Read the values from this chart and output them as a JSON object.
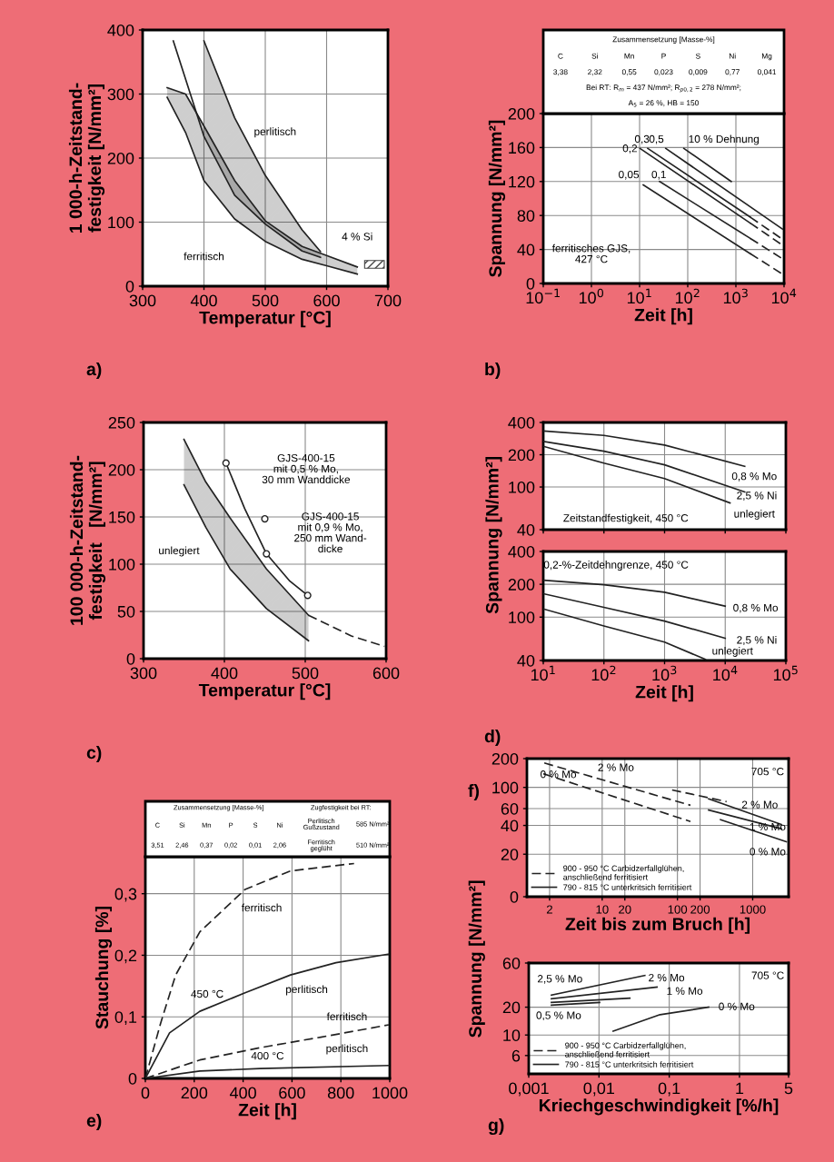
{
  "chart_data": [
    {
      "type": "line",
      "title": "a)",
      "xlabel": "Temperatur [°C]",
      "ylabel": "1 000-h-Zeitstand-\nfestigkeit [N/mm²]",
      "xlim": [
        300,
        700
      ],
      "ylim": [
        0,
        400
      ],
      "xticks": [
        300,
        400,
        500,
        600,
        700
      ],
      "yticks": [
        0,
        100,
        200,
        300,
        400
      ],
      "grid": true,
      "series": [
        {
          "color": "#222222",
          "x": [
            340,
            370,
            400,
            450,
            500,
            560,
            600,
            650
          ],
          "values": [
            310,
            300,
            250,
            165,
            102,
            62,
            48,
            30
          ],
          "lower": [
            295,
            240,
            165,
            105,
            70,
            42,
            32,
            19
          ],
          "upper": [
            310,
            300,
            250,
            165,
            102,
            62,
            48,
            30
          ]
        },
        {
          "color": "#222222",
          "x": [
            340,
            370,
            400,
            450,
            500,
            560,
            600,
            650
          ],
          "values": [
            295,
            240,
            165,
            105,
            70,
            42,
            32,
            19
          ]
        },
        {
          "color": "#222222",
          "x": [
            400,
            450,
            500,
            560,
            590
          ],
          "values": [
            383,
            263,
            173,
            88,
            54
          ],
          "lower": [
            234,
            142,
            97,
            55,
            45
          ],
          "upper": [
            383,
            263,
            173,
            88,
            54
          ]
        },
        {
          "color": "#222222",
          "x": [
            350,
            400,
            450,
            500,
            560,
            590
          ],
          "values": [
            383,
            234,
            142,
            97,
            55,
            45
          ]
        }
      ],
      "annotations": [
        "perlitisch",
        "ferritisch",
        "4 % Si"
      ]
    },
    {
      "type": "line",
      "title": "b)",
      "xlabel": "Zeit [h]",
      "ylabel": "Spannung [N/mm²]",
      "log": "x",
      "xlim": [
        0.1,
        10000
      ],
      "ylim": [
        0,
        200
      ],
      "xticks": [
        {
          "value": 0.1,
          "label": "10$^{−1}$"
        },
        {
          "value": 1,
          "label": "10$^{0}$"
        },
        {
          "value": 10,
          "label": "10$^{1}$"
        },
        {
          "value": 100,
          "label": "10$^{2}$"
        },
        {
          "value": 1000,
          "label": "10$^{3}$"
        },
        {
          "value": 10000,
          "label": "10$^{4}$"
        }
      ],
      "yticks": [
        0,
        40,
        80,
        120,
        160,
        200
      ],
      "grid": true,
      "series": [
        {
          "color": "#222222",
          "x": [
            11.9,
            2000
          ],
          "values": [
            116,
            35
          ]
        },
        {
          "color": "#222222",
          "x": [
            2000,
            9300
          ],
          "values": [
            35,
            11
          ],
          "line_style": "dashed"
        },
        {
          "color": "#222222",
          "x": [
            26,
            2000
          ],
          "values": [
            120,
            53
          ]
        },
        {
          "color": "#222222",
          "x": [
            2000,
            9300
          ],
          "values": [
            53,
            29
          ],
          "line_style": "dashed"
        },
        {
          "color": "#222222",
          "x": [
            10.2,
            2000
          ],
          "values": [
            159,
            71
          ]
        },
        {
          "color": "#222222",
          "x": [
            2000,
            9300
          ],
          "values": [
            71,
            45
          ],
          "line_style": "dashed"
        },
        {
          "color": "#222222",
          "x": [
            14.8,
            2000
          ],
          "values": [
            159,
            78
          ]
        },
        {
          "color": "#222222",
          "x": [
            2000,
            9300
          ],
          "values": [
            78,
            52
          ],
          "line_style": "dashed"
        },
        {
          "color": "#222222",
          "x": [
            35,
            9300
          ],
          "values": [
            159,
            64
          ]
        },
        {
          "color": "#222222",
          "x": [
            83,
            800
          ],
          "values": [
            159,
            120
          ]
        }
      ],
      "annotations": [
        "Zusammensetzung [Masse-%]",
        "C",
        "Si",
        "Mn",
        "P",
        "S",
        "Ni",
        "Mg",
        "3,38",
        "2,32",
        "0,55",
        "0,023",
        "0,009",
        "0,77",
        "0,041",
        "Bei RT: R$_{m}$ = 437 N/mm²; R$_{p0,2}$ = 278 N/mm²;",
        "A$_{5}$ = 26 %, HB = 150",
        "ferritisches GJS,\n427 °C",
        "0,2",
        "0,3",
        "0,5",
        "10 % Dehnung",
        "0,05",
        "0,1"
      ]
    },
    {
      "type": "line",
      "title": "c)",
      "xlabel": "Temperatur [°C]",
      "ylabel": "100 000-h-Zeitstand-\nfestigkeit   [N/mm²]",
      "xlim": [
        300,
        600
      ],
      "ylim": [
        0,
        250
      ],
      "xticks": [
        300,
        400,
        500,
        600
      ],
      "yticks": [
        0,
        50,
        100,
        150,
        200,
        250
      ],
      "grid": true,
      "series": [
        {
          "color": "#222222",
          "x": [
            350,
            377,
            407,
            452,
            504
          ],
          "values": [
            232,
            187,
            149,
            95,
            46
          ],
          "lower": [
            184,
            139,
            95,
            53,
            19
          ],
          "upper": [
            232,
            187,
            149,
            95,
            46
          ]
        },
        {
          "color": "#222222",
          "x": [
            350,
            377,
            407,
            452,
            504
          ],
          "values": [
            184,
            139,
            95,
            53,
            19
          ]
        },
        {
          "color": "#222222",
          "x": [
            504,
            557,
            598
          ],
          "values": [
            46,
            24,
            13
          ],
          "line_style": "dashed"
        },
        {
          "color": "#222222",
          "x": [
            402,
            425,
            452,
            481,
            503
          ],
          "values": [
            207,
            159,
            111,
            82,
            67
          ]
        },
        {
          "type": "scatter",
          "color": "#222222",
          "marker": "circle",
          "x": [
            402,
            452,
            503
          ],
          "values": [
            207,
            111,
            67
          ]
        },
        {
          "type": "scatter",
          "color": "#222222",
          "marker": "circle",
          "x": [
            450
          ],
          "values": [
            148
          ]
        }
      ],
      "annotations": [
        "GJS-400-15\nmit 0,5 % Mo,\n30 mm Wanddicke",
        "GJS-400-15\nmit 0,9 % Mo,\n250 mm Wand-\ndicke",
        "unlegiert"
      ]
    },
    {
      "type": "line",
      "ylabel": "Spannung [N/mm²]",
      "log": "xy",
      "tick_labels": "y",
      "xlim": [
        10,
        100000
      ],
      "ylim": [
        40,
        400
      ],
      "xticks": [
        {
          "value": 10,
          "label": null
        },
        {
          "value": 100,
          "label": null
        },
        {
          "value": 1000,
          "label": null
        },
        {
          "value": 10000,
          "label": null
        },
        {
          "value": 100000,
          "label": null
        }
      ],
      "yticks": [
        40,
        100,
        200,
        400
      ],
      "grid": true,
      "series": [
        {
          "color": "#222222",
          "x": [
            10,
            100,
            1000,
            21000
          ],
          "values": [
            333,
            303,
            246,
            156
          ]
        },
        {
          "color": "#222222",
          "x": [
            10,
            100,
            1000,
            21000
          ],
          "values": [
            266,
            216,
            161,
            90
          ]
        },
        {
          "color": "#222222",
          "x": [
            10,
            100,
            1000,
            12000
          ],
          "values": [
            240,
            167,
            120,
            71
          ]
        }
      ],
      "annotations": [
        "Zeitstandfestigkeit, 450 °C",
        "0,8 % Mo",
        "2,5 % Ni",
        "unlegiert"
      ]
    },
    {
      "type": "line",
      "title": "d)",
      "xlabel": "Zeit [h]",
      "log": "xy",
      "xlim": [
        10,
        100000
      ],
      "ylim": [
        40,
        400
      ],
      "xticks": [
        {
          "value": 10,
          "label": "10$^{1}$"
        },
        {
          "value": 100,
          "label": "10$^{2}$"
        },
        {
          "value": 1000,
          "label": "10$^{3}$"
        },
        {
          "value": 10000,
          "label": "10$^{4}$"
        },
        {
          "value": 100000,
          "label": "10$^{5}$"
        }
      ],
      "yticks": [
        40,
        100,
        200,
        400
      ],
      "grid": true,
      "series": [
        {
          "color": "#222222",
          "x": [
            10,
            100,
            1000,
            10000
          ],
          "values": [
            218,
            198,
            169,
            126
          ]
        },
        {
          "color": "#222222",
          "x": [
            10,
            100,
            1000,
            10000
          ],
          "values": [
            164,
            123,
            92,
            64
          ]
        },
        {
          "color": "#222222",
          "x": [
            10,
            100,
            1000,
            4700
          ],
          "values": [
            119,
            83,
            59,
            41
          ]
        }
      ],
      "annotations": [
        "0,2-%-Zeitdehngrenze, 450 °C",
        "0,8 % Mo",
        "2,5 % Ni",
        "unlegiert"
      ]
    },
    {
      "type": "line",
      "title": "e)",
      "xlabel": "Zeit [h]",
      "ylabel": "Stauchung [%]",
      "xlim": [
        0,
        1000
      ],
      "ylim": [
        0,
        0.36
      ],
      "xticks": [
        0,
        200,
        400,
        600,
        800,
        1000
      ],
      "yticks": [
        0,
        {
          "value": 0.1,
          "label": "0,1"
        },
        {
          "value": 0.2,
          "label": "0,2"
        },
        {
          "value": 0.3,
          "label": "0,3"
        }
      ],
      "grid": true,
      "series": [
        {
          "color": "#222222",
          "line_style": "dashed",
          "x": [
            0,
            62,
            124,
            223,
            408,
            594,
            854
          ],
          "values": [
            0,
            0.089,
            0.168,
            0.238,
            0.307,
            0.337,
            0.349
          ]
        },
        {
          "color": "#222222",
          "x": [
            0,
            99,
            223,
            408,
            594,
            780,
            996
          ],
          "values": [
            0,
            0.074,
            0.109,
            0.139,
            0.168,
            0.188,
            0.202
          ]
        },
        {
          "color": "#222222",
          "line_style": "dashed",
          "x": [
            0,
            223,
            470,
            718,
            996
          ],
          "values": [
            0,
            0.03,
            0.05,
            0.067,
            0.087
          ]
        },
        {
          "color": "#222222",
          "x": [
            0,
            223,
            470,
            996
          ],
          "values": [
            0,
            0.012,
            0.016,
            0.021
          ]
        }
      ],
      "annotations": [
        "Zusammensetzung [Masse-%]",
        "C",
        "Si",
        "Mn",
        "P",
        "S",
        "Ni",
        "3,51",
        "2,46",
        "0,37",
        "0,02",
        "0,01",
        "2,06",
        "Zugfestigkeit bei RT:",
        "Perlitisch\nGußzustand",
        "585 N/mm²",
        "Ferritisch\ngeglüht",
        "510 N/mm²",
        "ferritisch",
        "450 °C",
        "perlitisch",
        "ferritisch",
        "perlitisch",
        "400 °C"
      ]
    },
    {
      "type": "line",
      "title": "f)",
      "xlabel": "Zeit bis zum Bruch [h]",
      "ylabel": "Spannung [N/mm²]",
      "log": "xy",
      "xlim": [
        1,
        3000
      ],
      "ylim": [
        0,
        200
      ],
      "xticks": [
        2,
        10,
        20,
        100,
        200,
        1000
      ],
      "yticks": [
        0,
        20,
        40,
        60,
        100,
        200
      ],
      "grid": true,
      "legend": "bottom left",
      "series": [
        {
          "name": "900 - 950 °C Carbidzerfallglühen,\nanschließend ferritisiert",
          "color": "#222222",
          "line_style": "dashed",
          "x": [
            1.7,
            149
          ],
          "values": [
            180,
            65
          ]
        },
        {
          "color": "#222222",
          "line_style": "dashed",
          "x": [
            1.65,
            149
          ],
          "values": [
            139,
            44
          ]
        },
        {
          "color": "#222222",
          "line_style": "dashed",
          "x": [
            85,
            450
          ],
          "values": [
            94,
            71
          ]
        },
        {
          "name": "790 - 815 °C unterkritsich ferritisiert",
          "color": "#222222",
          "x": [
            260,
            2400
          ],
          "values": [
            76,
            41
          ]
        },
        {
          "color": "#222222",
          "x": [
            260,
            2400
          ],
          "values": [
            58,
            37
          ]
        },
        {
          "color": "#222222",
          "x": [
            375,
            2800
          ],
          "values": [
            46,
            27
          ]
        }
      ],
      "annotations": [
        "705 °C",
        "2 % Mo",
        "0 % Mo",
        "2 % Mo",
        "1 % Mo",
        "0 % Mo"
      ]
    },
    {
      "type": "line",
      "title": "g)",
      "xlabel": "Kriechgeschwindigkeit [%/h]",
      "log": "xy",
      "xlim": [
        0.001,
        5
      ],
      "ylim": [
        3.8,
        60
      ],
      "xticks": [
        {
          "value": 0.001,
          "label": "0,001"
        },
        {
          "value": 0.01,
          "label": "0,01"
        },
        {
          "value": 0.1,
          "label": "0,1"
        },
        1,
        5
      ],
      "yticks": [
        6,
        10,
        20,
        60
      ],
      "grid": true,
      "legend": "bottom left",
      "series": [
        {
          "name": "900 - 950 °C Carbidzerfallglühen,\nanschließend ferritisiert",
          "color": "#222222",
          "line_style": "dashed"
        },
        {
          "name": "790 - 815 °C unterkritsich ferritisiert",
          "color": "#222222",
          "x": [
            0.0021,
            0.045
          ],
          "values": [
            27,
            44
          ]
        },
        {
          "color": "#222222",
          "x": [
            0.0021,
            0.067
          ],
          "values": [
            24.6,
            33
          ]
        },
        {
          "color": "#222222",
          "x": [
            0.0021,
            0.0275
          ],
          "values": [
            22.5,
            25
          ]
        },
        {
          "color": "#222222",
          "x": [
            0.0021,
            0.0102
          ],
          "values": [
            21,
            22.5
          ]
        },
        {
          "color": "#222222",
          "x": [
            0.0159,
            0.074,
            0.364
          ],
          "values": [
            11,
            16.6,
            20
          ]
        }
      ],
      "annotations": [
        "705 °C",
        "2,5 % Mo",
        "2 % Mo",
        "1 % Mo",
        "0,5 % Mo",
        "0 % Mo"
      ]
    }
  ]
}
